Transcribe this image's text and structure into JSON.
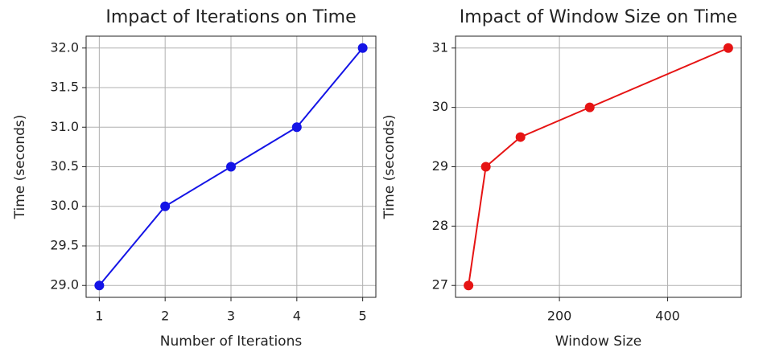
{
  "chart_data": [
    {
      "type": "line",
      "title": "Impact of Iterations on Time",
      "x_label": "Number of Iterations",
      "y_label": "Time (seconds)",
      "x": [
        1,
        2,
        3,
        4,
        5
      ],
      "series": [
        {
          "name": "Time",
          "color": "#1414e6",
          "values": [
            29,
            30,
            30.5,
            31,
            32
          ]
        }
      ],
      "xlim": [
        0.8,
        5.2
      ],
      "xticks": [
        1,
        2,
        3,
        4,
        5
      ],
      "ylim": [
        28.85,
        32.15
      ],
      "yticks": [
        {
          "value": 29,
          "label": "29.0"
        },
        {
          "value": 29.5,
          "label": "29.5"
        },
        {
          "value": 30,
          "label": "30.0"
        },
        {
          "value": 30.5,
          "label": "30.5"
        },
        {
          "value": 31,
          "label": "31.0"
        },
        {
          "value": 31.5,
          "label": "31.5"
        },
        {
          "value": 32,
          "label": "32.0"
        }
      ],
      "grid": true
    },
    {
      "type": "line",
      "title": "Impact of Window Size on Time",
      "x_label": "Window Size",
      "y_label": "Time (seconds)",
      "x": [
        32,
        64,
        128,
        256,
        512
      ],
      "series": [
        {
          "name": "Time",
          "color": "#e61414",
          "values": [
            27,
            29,
            29.5,
            30,
            31
          ]
        }
      ],
      "xlim": [
        8,
        536
      ],
      "xticks": [
        200,
        400
      ],
      "ylim": [
        26.8,
        31.2
      ],
      "yticks": [
        27,
        28,
        29,
        30,
        31
      ],
      "grid": true
    }
  ]
}
